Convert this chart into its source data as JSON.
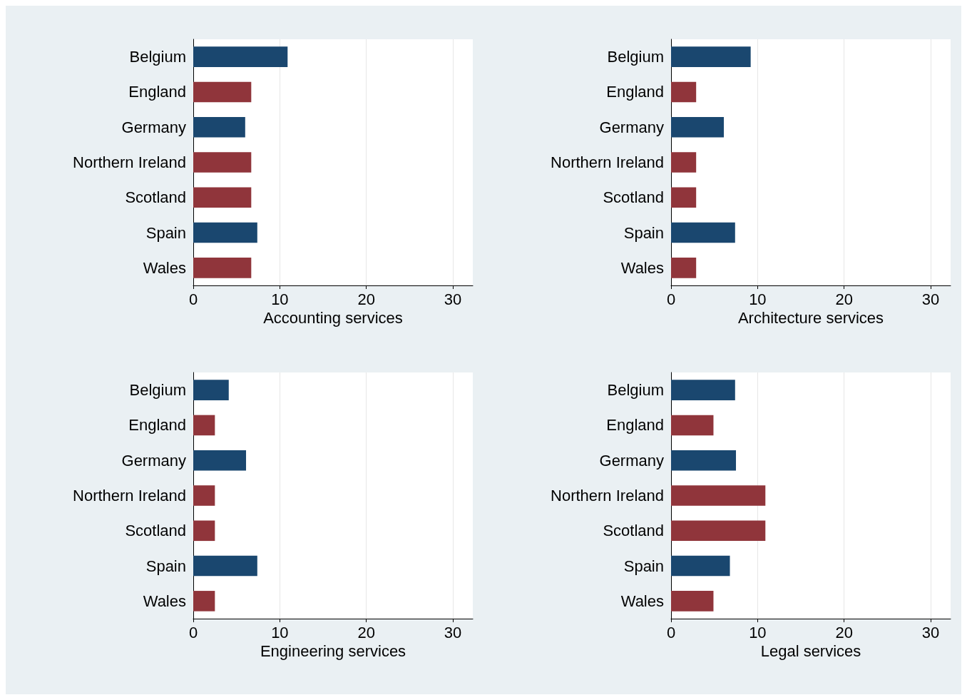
{
  "chart_data": [
    {
      "type": "bar",
      "orientation": "horizontal",
      "xlabel": "Accounting services",
      "categories": [
        "Belgium",
        "England",
        "Germany",
        "Northern Ireland",
        "Scotland",
        "Spain",
        "Wales"
      ],
      "values": [
        10.9,
        6.7,
        6.0,
        6.7,
        6.7,
        7.4,
        6.7
      ],
      "colors": [
        "#1a476f",
        "#90353b",
        "#1a476f",
        "#90353b",
        "#90353b",
        "#1a476f",
        "#90353b"
      ],
      "xlim": [
        0,
        32.3
      ],
      "xticks": [
        0,
        10,
        20,
        30
      ],
      "grid": "x"
    },
    {
      "type": "bar",
      "orientation": "horizontal",
      "xlabel": "Architecture services",
      "categories": [
        "Belgium",
        "England",
        "Germany",
        "Northern Ireland",
        "Scotland",
        "Spain",
        "Wales"
      ],
      "values": [
        9.2,
        2.9,
        6.1,
        2.9,
        2.9,
        7.4,
        2.9
      ],
      "colors": [
        "#1a476f",
        "#90353b",
        "#1a476f",
        "#90353b",
        "#90353b",
        "#1a476f",
        "#90353b"
      ],
      "xlim": [
        0,
        32.3
      ],
      "xticks": [
        0,
        10,
        20,
        30
      ],
      "grid": "x"
    },
    {
      "type": "bar",
      "orientation": "horizontal",
      "xlabel": "Engineering services",
      "categories": [
        "Belgium",
        "England",
        "Germany",
        "Northern Ireland",
        "Scotland",
        "Spain",
        "Wales"
      ],
      "values": [
        4.1,
        2.5,
        6.1,
        2.5,
        2.5,
        7.4,
        2.5
      ],
      "colors": [
        "#1a476f",
        "#90353b",
        "#1a476f",
        "#90353b",
        "#90353b",
        "#1a476f",
        "#90353b"
      ],
      "xlim": [
        0,
        32.3
      ],
      "xticks": [
        0,
        10,
        20,
        30
      ],
      "grid": "x"
    },
    {
      "type": "bar",
      "orientation": "horizontal",
      "xlabel": "Legal services",
      "categories": [
        "Belgium",
        "England",
        "Germany",
        "Northern Ireland",
        "Scotland",
        "Spain",
        "Wales"
      ],
      "values": [
        7.4,
        4.9,
        7.5,
        10.9,
        10.9,
        6.8,
        4.9
      ],
      "colors": [
        "#1a476f",
        "#90353b",
        "#1a476f",
        "#90353b",
        "#90353b",
        "#1a476f",
        "#90353b"
      ],
      "xlim": [
        0,
        32.3
      ],
      "xticks": [
        0,
        10,
        20,
        30
      ],
      "grid": "x"
    }
  ]
}
